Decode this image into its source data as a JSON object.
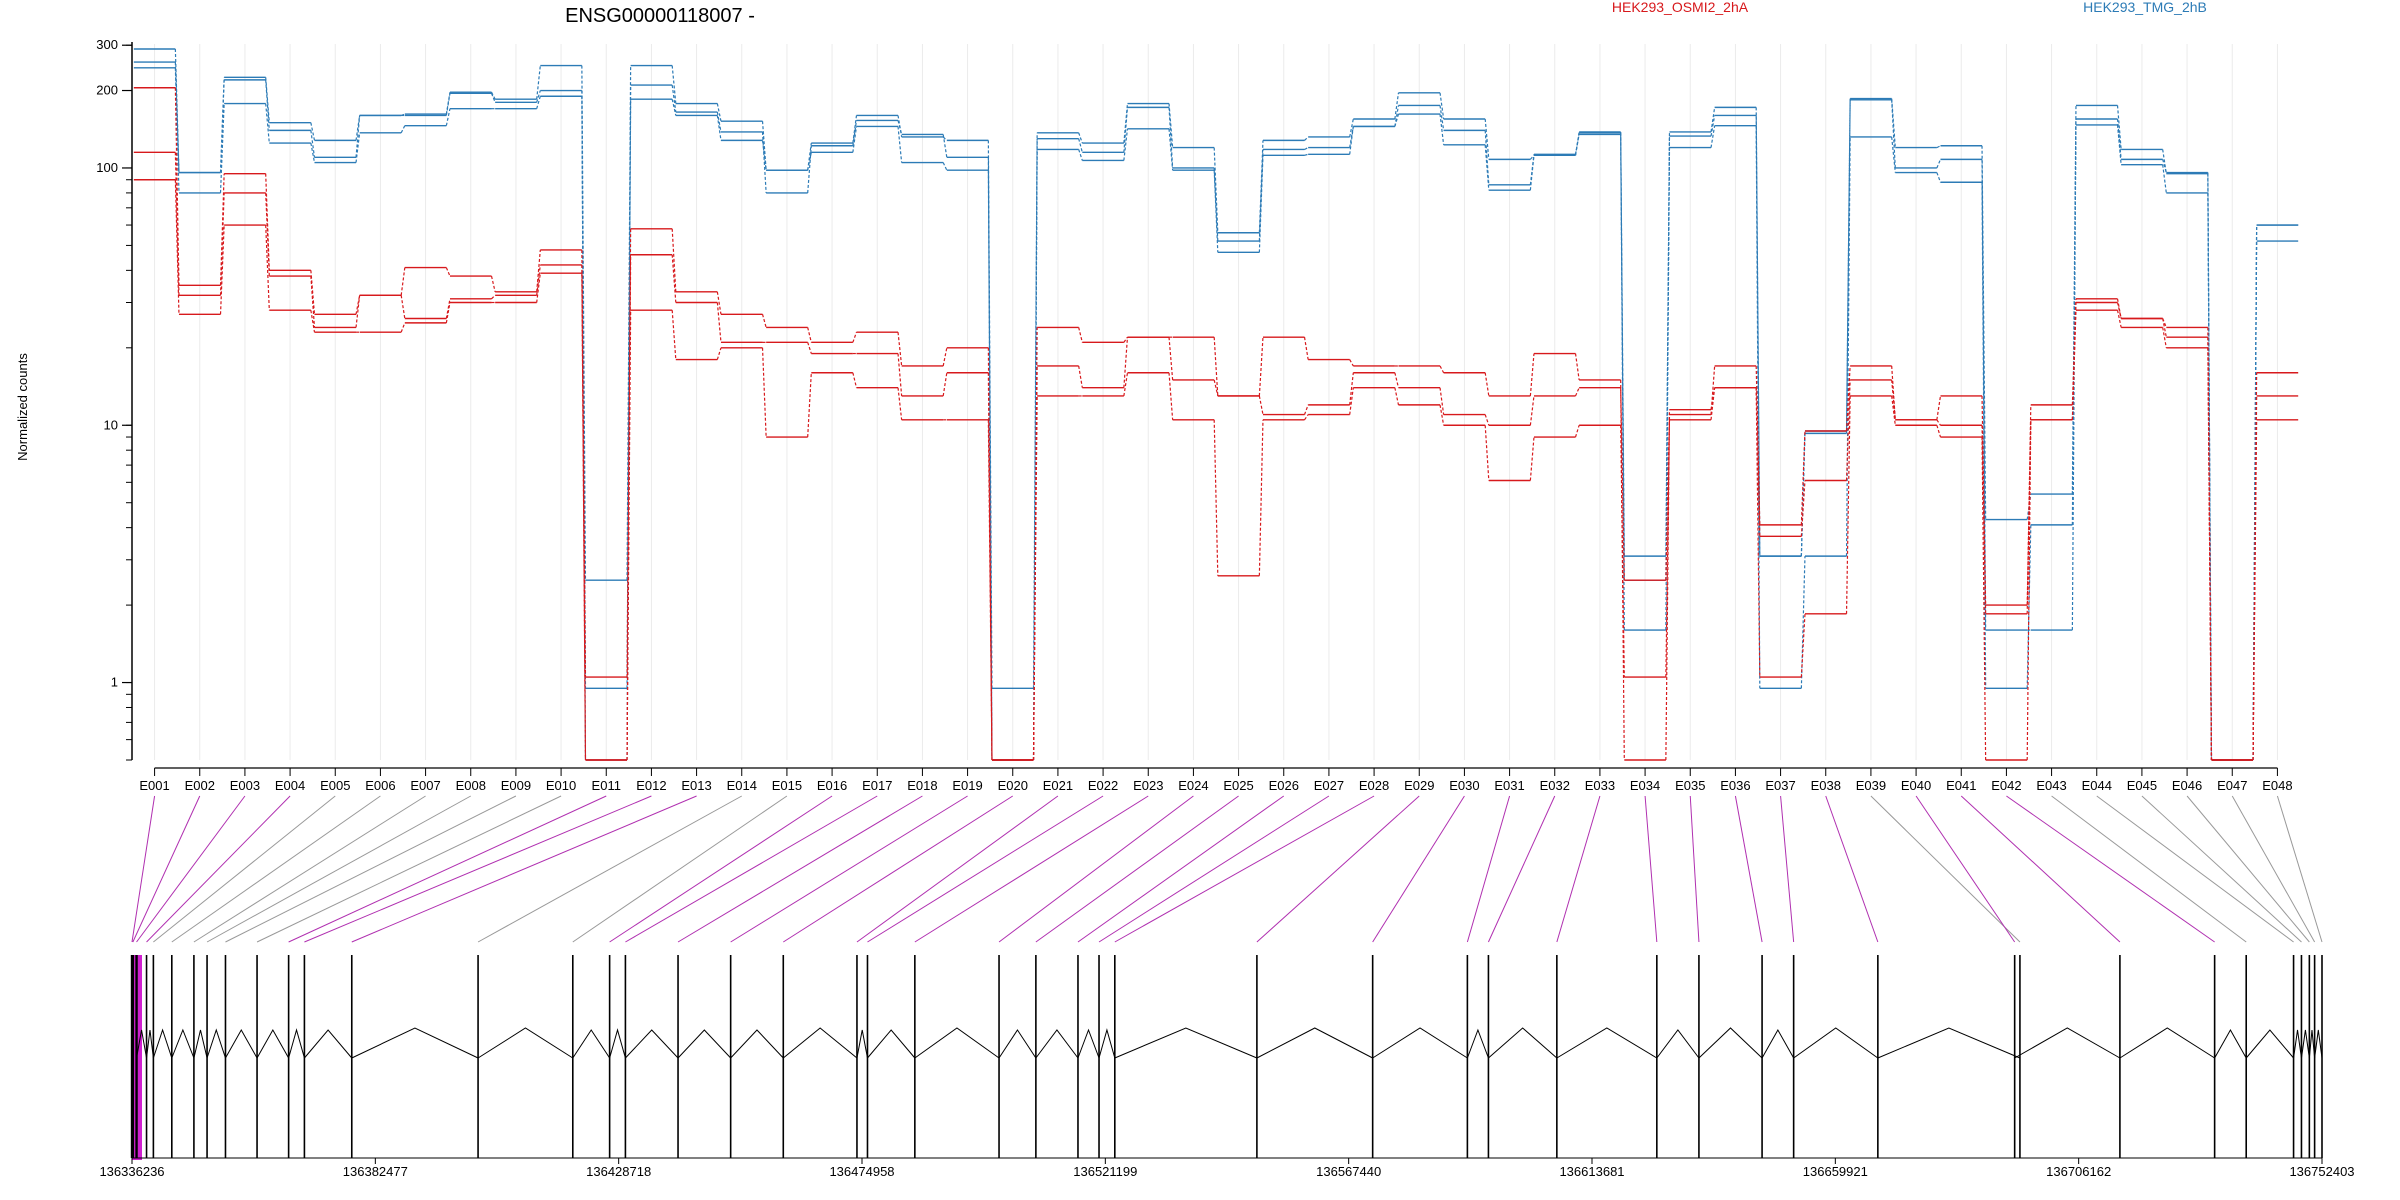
{
  "chart_data": {
    "type": "line",
    "title": "ENSG00000118007 -",
    "ylabel": "Normalized counts",
    "yscale": "log",
    "ylim": [
      0.5,
      320
    ],
    "y_ticks": [
      1,
      10,
      100,
      200,
      300
    ],
    "y_tick_labels": [
      "1",
      "10",
      "100",
      "200",
      "300"
    ],
    "colors": {
      "HEK293_OSMI2_2hA": "#d7191c",
      "HEK293_TMG_2hB": "#2c7bb6",
      "model_line": "#000000",
      "connector_gray": "#999999",
      "connector_magenta": "#b030b0",
      "exon_highlight": "#d020d0"
    },
    "legend": [
      {
        "label": "HEK293_OSMI2_2hA",
        "color": "#d7191c"
      },
      {
        "label": "HEK293_TMG_2hB",
        "color": "#2c7bb6"
      }
    ],
    "categories": [
      "E001",
      "E002",
      "E003",
      "E004",
      "E005",
      "E006",
      "E007",
      "E008",
      "E009",
      "E010",
      "E011",
      "E012",
      "E013",
      "E014",
      "E015",
      "E016",
      "E017",
      "E018",
      "E019",
      "E020",
      "E021",
      "E022",
      "E023",
      "E024",
      "E025",
      "E026",
      "E027",
      "E028",
      "E029",
      "E030",
      "E031",
      "E032",
      "E033",
      "E034",
      "E035",
      "E036",
      "E037",
      "E038",
      "E039",
      "E040",
      "E041",
      "E042",
      "E043",
      "E044",
      "E045",
      "E046",
      "E047",
      "E048"
    ],
    "series": [
      {
        "group": "HEK293_TMG_2hB",
        "values": [
          290,
          96,
          225,
          150,
          128,
          160,
          162,
          197,
          185,
          250,
          2.5,
          250,
          178,
          152,
          98,
          125,
          160,
          132,
          128,
          0.95,
          137,
          125,
          178,
          120,
          56,
          128,
          132,
          155,
          196,
          155,
          108,
          112,
          137,
          3.1,
          138,
          172,
          3.1,
          9.5,
          186,
          120,
          122,
          4.3,
          5.4,
          175,
          118,
          95,
          0.5,
          60
        ]
      },
      {
        "group": "HEK293_TMG_2hB",
        "values": [
          258,
          96,
          220,
          140,
          110,
          160,
          160,
          195,
          180,
          200,
          0.5,
          210,
          165,
          138,
          80,
          122,
          153,
          135,
          110,
          0.5,
          130,
          115,
          172,
          100,
          52,
          118,
          120,
          145,
          175,
          140,
          86,
          113,
          135,
          2.5,
          133,
          160,
          3.1,
          9.3,
          184,
          100,
          108,
          1.6,
          1.6,
          155,
          108,
          96,
          0.5,
          60
        ]
      },
      {
        "group": "HEK293_TMG_2hB",
        "values": [
          245,
          80,
          178,
          125,
          105,
          137,
          146,
          170,
          170,
          190,
          0.95,
          185,
          160,
          128,
          98,
          115,
          145,
          105,
          98,
          0.5,
          118,
          107,
          142,
          98,
          47,
          112,
          113,
          145,
          162,
          123,
          82,
          112,
          138,
          1.6,
          120,
          146,
          0.95,
          3.1,
          132,
          96,
          88,
          0.95,
          4.1,
          147,
          103,
          80,
          0.5,
          52
        ]
      },
      {
        "group": "HEK293_OSMI2_2hA",
        "values": [
          205,
          35,
          95,
          40,
          27,
          32,
          41,
          38,
          33,
          48,
          1.05,
          58,
          33,
          27,
          24,
          21,
          23,
          17,
          20,
          0.5,
          24,
          21,
          22,
          22,
          13,
          22,
          18,
          17,
          17,
          16,
          13,
          19,
          15,
          0.5,
          11,
          17,
          4.1,
          9.5,
          17,
          10.5,
          13,
          2.0,
          12,
          31,
          26,
          24,
          0.5,
          16
        ]
      },
      {
        "group": "HEK293_OSMI2_2hA",
        "values": [
          115,
          32,
          80,
          38,
          24,
          32,
          26,
          31,
          32,
          42,
          0.5,
          46,
          30,
          21,
          21,
          19,
          19,
          13,
          16,
          0.5,
          17,
          14,
          22,
          15,
          13,
          11,
          12,
          16,
          14,
          11,
          10,
          13,
          14,
          2.5,
          11.5,
          14,
          3.7,
          6.1,
          15,
          10.5,
          10,
          1.85,
          10.5,
          30,
          26,
          22,
          0.5,
          13
        ]
      },
      {
        "group": "HEK293_OSMI2_2hA",
        "values": [
          90,
          27,
          60,
          28,
          23,
          23,
          25,
          30,
          30,
          39,
          0.5,
          28,
          18,
          20,
          9,
          16,
          14,
          10.5,
          10.5,
          0.5,
          13,
          13,
          16,
          10.5,
          2.6,
          10.5,
          11,
          14,
          12,
          10,
          6.1,
          9,
          10,
          1.05,
          10.5,
          14,
          1.05,
          1.85,
          13,
          10,
          9,
          0.5,
          10.5,
          28,
          24,
          20,
          0.5,
          10.5
        ]
      }
    ],
    "genomic_axis": {
      "start": 136336236,
      "end": 136752403,
      "tick_values": [
        136336236,
        136382477,
        136428718,
        136474958,
        136521199,
        136567440,
        136613681,
        136659921,
        136706162,
        136752403
      ],
      "tick_labels": [
        "136336236",
        "136382477",
        "136428718",
        "136474958",
        "136521199",
        "136567440",
        "136613681",
        "136659921",
        "136706162",
        "136752403"
      ]
    },
    "exon_positions": [
      136336236,
      136336400,
      136337100,
      136339000,
      136340300,
      136343800,
      136348000,
      136350500,
      136354000,
      136360000,
      136366000,
      136369000,
      136378000,
      136402000,
      136420000,
      136427000,
      136430000,
      136440000,
      136450000,
      136460000,
      136474000,
      136476000,
      136485000,
      136501000,
      136508000,
      136516000,
      136520000,
      136523000,
      136550000,
      136572000,
      136590000,
      136594000,
      136607000,
      136626000,
      136634000,
      136646000,
      136652000,
      136668000,
      136695000,
      136694000,
      136714000,
      136732000,
      136738000,
      136747000,
      136748500,
      136750000,
      136751000,
      136752403
    ],
    "connector_highlight": [
      1,
      1,
      1,
      1,
      0,
      0,
      0,
      0,
      0,
      0,
      1,
      1,
      1,
      0,
      0,
      1,
      1,
      1,
      1,
      1,
      1,
      1,
      1,
      1,
      1,
      1,
      1,
      1,
      1,
      1,
      1,
      1,
      1,
      1,
      1,
      1,
      1,
      1,
      0,
      1,
      1,
      1,
      0,
      0,
      0,
      0,
      0,
      0
    ]
  }
}
